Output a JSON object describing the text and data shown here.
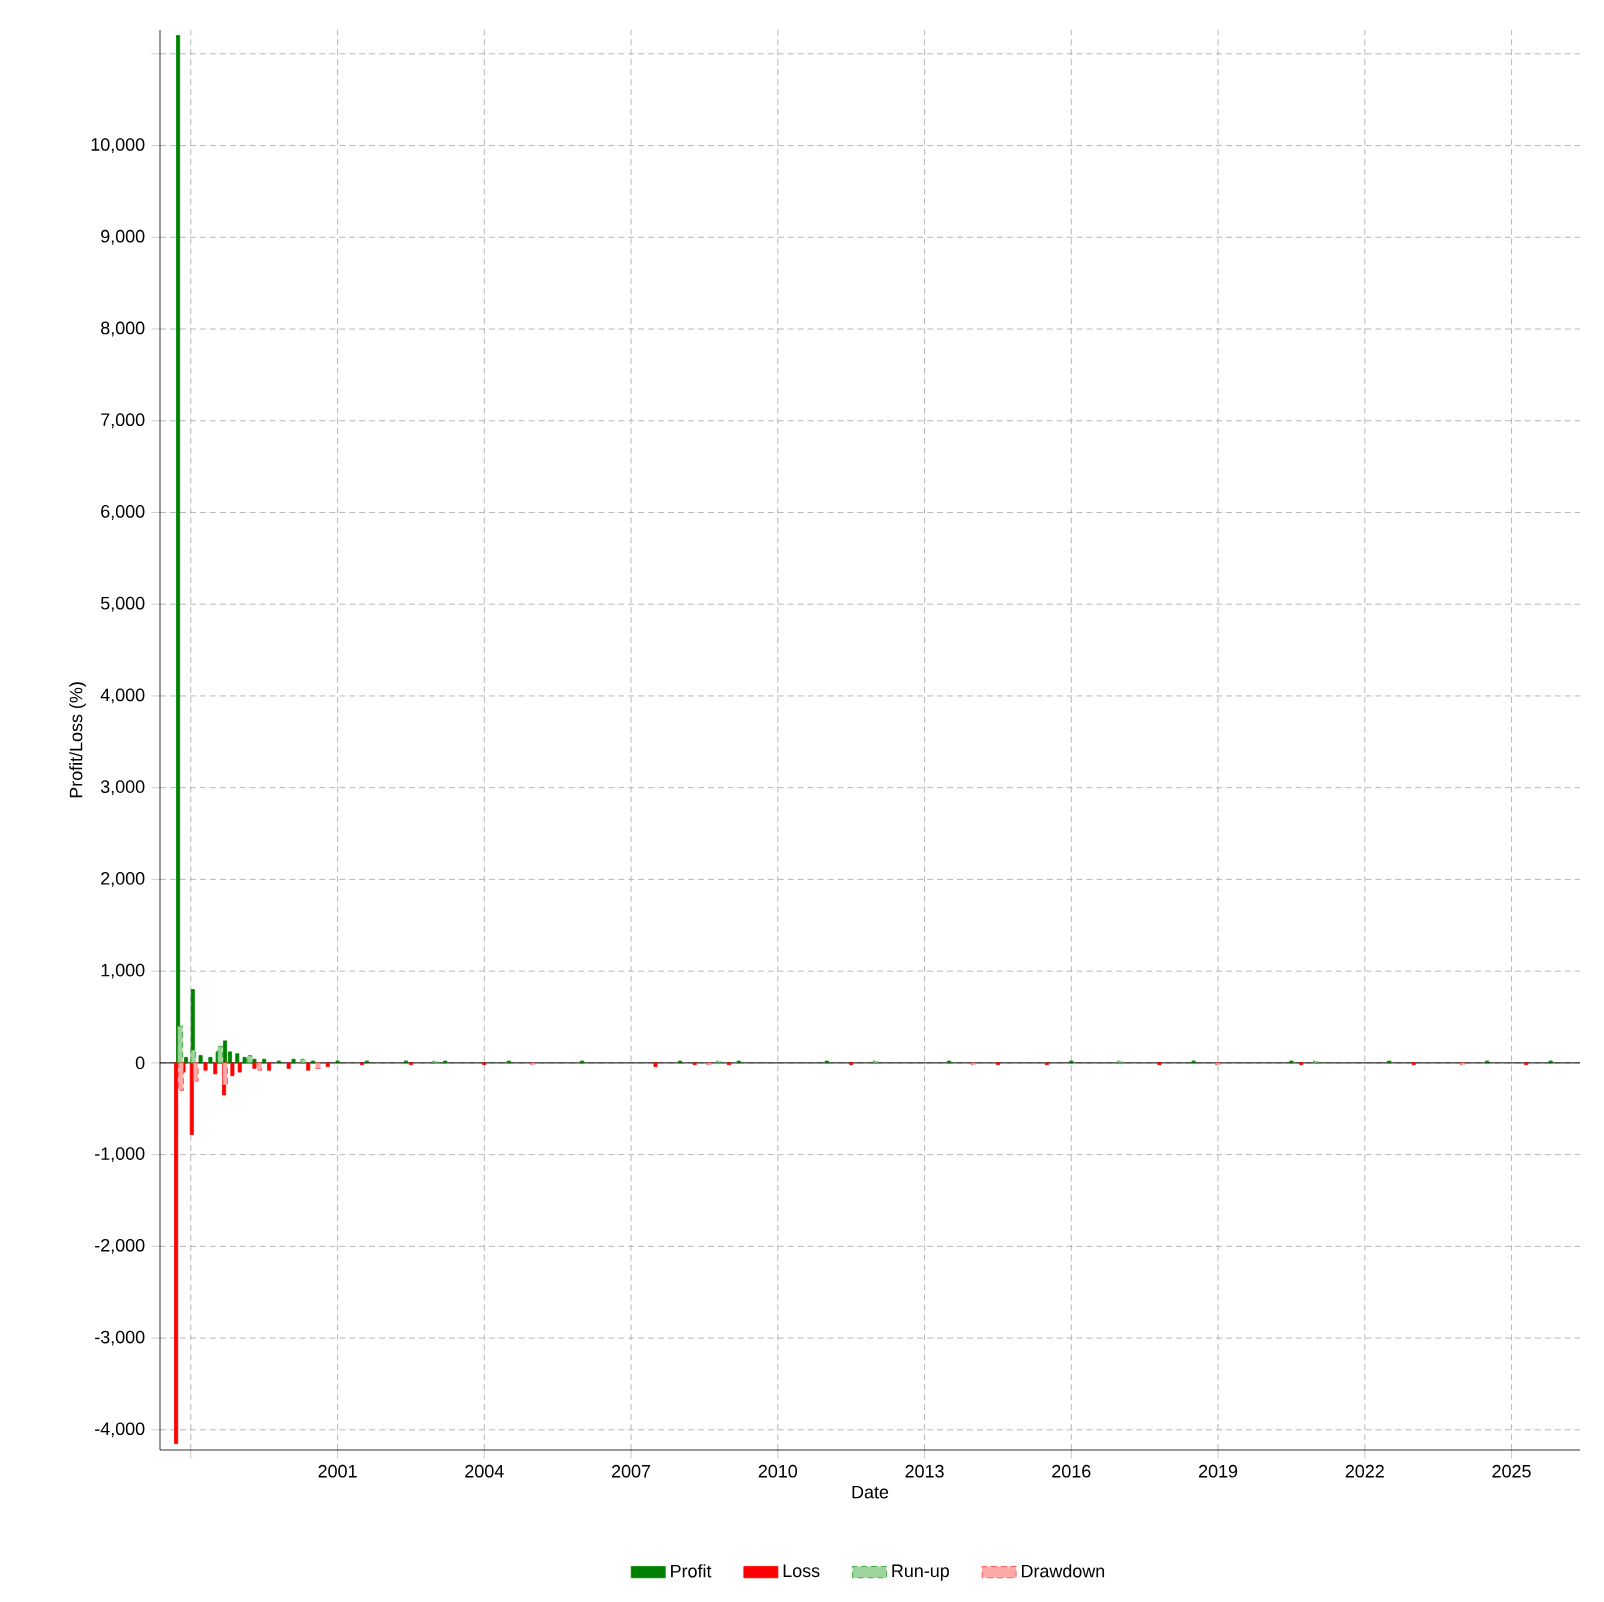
{
  "chart_data": {
    "type": "bar",
    "xlabel": "Date",
    "ylabel": "Profit/Loss (%)",
    "xlim": [
      1997.37,
      2026.4
    ],
    "xticks": [
      {
        "value": 1998,
        "label": null
      },
      2001,
      2004,
      2007,
      2010,
      2013,
      2016,
      2019,
      2022,
      2025
    ],
    "ylim": [
      -4220,
      11260
    ],
    "yticks": [
      {
        "value": -4000,
        "label": "-4,000"
      },
      {
        "value": -3000,
        "label": "-3,000"
      },
      {
        "value": -2000,
        "label": "-2,000"
      },
      {
        "value": -1000,
        "label": "-1,000"
      },
      0,
      {
        "value": 1000,
        "label": "1,000"
      },
      {
        "value": 2000,
        "label": "2,000"
      },
      {
        "value": 3000,
        "label": "3,000"
      },
      {
        "value": 4000,
        "label": "4,000"
      },
      {
        "value": 5000,
        "label": "5,000"
      },
      {
        "value": 6000,
        "label": "6,000"
      },
      {
        "value": 7000,
        "label": "7,000"
      },
      {
        "value": 8000,
        "label": "8,000"
      },
      {
        "value": 9000,
        "label": "9,000"
      },
      {
        "value": 10000,
        "label": "10,000"
      },
      {
        "value": 11000,
        "label": null
      }
    ],
    "grid": true,
    "legend": "bottom",
    "ref_lines": [
      {
        "axis": "y",
        "value": 0,
        "color": "#000000"
      }
    ],
    "series": [
      {
        "name": "Profit",
        "color": "#008000",
        "x": [
          1997.74,
          1997.9,
          1998.04,
          1998.2,
          1998.4,
          1998.55,
          1998.7,
          1998.8,
          1998.95,
          1999.1,
          1999.3,
          1999.5,
          1999.8,
          2000.1,
          2000.5,
          2001.0,
          2001.6,
          2002.4,
          2003.2,
          2004.5,
          2006,
          2008,
          2009.2,
          2011,
          2013.5,
          2016,
          2018.5,
          2020.5,
          2022.5,
          2024.5,
          2025.8
        ],
        "values": [
          11200,
          60,
          800,
          80,
          60,
          120,
          240,
          120,
          100,
          60,
          40,
          40,
          20,
          40,
          20,
          20,
          20,
          20,
          20,
          20,
          20,
          20,
          20,
          20,
          20,
          20,
          20,
          20,
          20,
          20,
          20
        ]
      },
      {
        "name": "Loss",
        "color": "#ff0000",
        "x": [
          1997.7,
          1997.85,
          1998.02,
          1998.3,
          1998.5,
          1998.68,
          1998.85,
          1999.0,
          1999.3,
          1999.6,
          2000.0,
          2000.4,
          2000.8,
          2001.5,
          2002.5,
          2004,
          2007.5,
          2008.3,
          2009,
          2011.5,
          2014.5,
          2015.5,
          2017.8,
          2020.7,
          2023,
          2025.3
        ],
        "values": [
          -4150,
          -100,
          -780,
          -80,
          -120,
          -350,
          -140,
          -100,
          -60,
          -80,
          -60,
          -80,
          -40,
          -20,
          -20,
          -20,
          -40,
          -20,
          -20,
          -20,
          -20,
          -20,
          -20,
          -20,
          -20,
          -20
        ]
      },
      {
        "name": "Run-up",
        "color": "#22a022",
        "line_style": "dashed",
        "x": [
          1997.78,
          1998.05,
          1998.6,
          1999.2,
          2000.3,
          2003,
          2008.8,
          2012,
          2017,
          2021
        ],
        "values": [
          400,
          140,
          180,
          80,
          40,
          20,
          20,
          20,
          20,
          20
        ]
      },
      {
        "name": "Drawdown",
        "color": "#ff4040",
        "line_style": "dashed",
        "x": [
          1997.8,
          1998.1,
          1998.7,
          1999.4,
          2000.6,
          2005,
          2008.6,
          2014,
          2019,
          2024
        ],
        "values": [
          -300,
          -200,
          -240,
          -80,
          -60,
          -20,
          -20,
          -20,
          -20,
          -20
        ]
      }
    ]
  }
}
